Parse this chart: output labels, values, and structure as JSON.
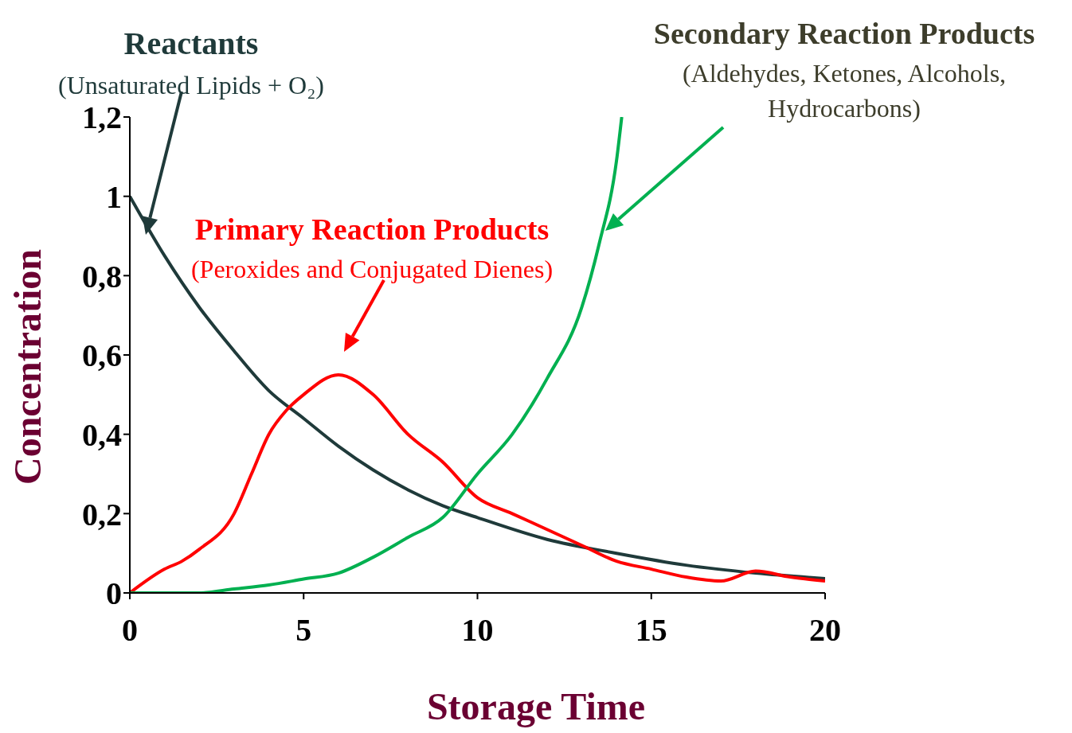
{
  "chart_data": {
    "type": "line",
    "xlabel": "Storage Time",
    "ylabel": "Concentration",
    "marker": "none",
    "line_style": "solid",
    "xlim": [
      0,
      20
    ],
    "xticks": [
      0,
      5,
      10,
      15,
      20
    ],
    "ylim": [
      0,
      1.2
    ],
    "yticks": [
      0,
      {
        "value": 0.2,
        "label": "0,2"
      },
      {
        "value": 0.4,
        "label": "0,4"
      },
      {
        "value": 0.6,
        "label": "0,6"
      },
      {
        "value": 0.8,
        "label": "0,8"
      },
      1,
      {
        "value": 1.2,
        "label": "1,2"
      }
    ],
    "series": [
      {
        "color": "#1f3a3a",
        "x": [
          0,
          1,
          2,
          3,
          4,
          5,
          6,
          7,
          8,
          9,
          10,
          12,
          14,
          16,
          18,
          20
        ],
        "values": [
          1,
          0.85,
          0.72,
          0.61,
          0.51,
          0.44,
          0.37,
          0.31,
          0.26,
          0.22,
          0.19,
          0.135,
          0.1,
          0.07,
          0.05,
          0.036
        ]
      },
      {
        "color": "#ff0000",
        "x": [
          0,
          1,
          1.5,
          2,
          3,
          3.5,
          4,
          4.5,
          5,
          6,
          7,
          8,
          9,
          10,
          11,
          12,
          13,
          14,
          15,
          16,
          17,
          18,
          19,
          20
        ],
        "values": [
          0,
          0.06,
          0.08,
          0.11,
          0.2,
          0.3,
          0.4,
          0.46,
          0.5,
          0.55,
          0.5,
          0.4,
          0.33,
          0.24,
          0.2,
          0.16,
          0.12,
          0.08,
          0.06,
          0.04,
          0.03,
          0.055,
          0.04,
          0.03
        ]
      },
      {
        "color": "#00b050",
        "x": [
          0,
          2,
          3,
          4,
          5,
          6,
          7,
          8,
          9,
          10,
          11,
          12,
          13,
          13.5,
          14,
          14.15
        ],
        "values": [
          0,
          0,
          0.01,
          0.02,
          0.035,
          0.05,
          0.09,
          0.14,
          0.19,
          0.3,
          0.4,
          0.54,
          0.72,
          0.88,
          1.09,
          1.2
        ]
      }
    ],
    "annotations": [
      "Reactants",
      "(Unsaturated Lipids + O₂)",
      "Primary Reaction Products",
      "(Peroxides and Conjugated Dienes)",
      "Secondary Reaction Products",
      "(Aldehydes, Ketones, Alcohols, Hydrocarbons)"
    ]
  }
}
